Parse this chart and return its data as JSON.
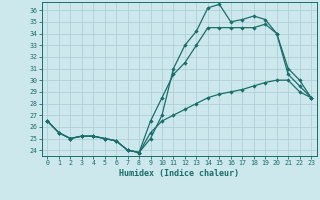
{
  "xlabel": "Humidex (Indice chaleur)",
  "bg_color": "#cce8ec",
  "grid_color": "#b0d0d8",
  "line_color": "#1a6e6a",
  "hours": [
    0,
    1,
    2,
    3,
    4,
    5,
    6,
    7,
    8,
    9,
    10,
    11,
    12,
    13,
    14,
    15,
    16,
    17,
    18,
    19,
    20,
    21,
    22,
    23
  ],
  "line1": [
    26.5,
    25.5,
    25.0,
    25.2,
    25.2,
    25.0,
    24.8,
    24.0,
    23.8,
    25.0,
    27.0,
    31.0,
    33.0,
    34.2,
    36.2,
    36.5,
    35.0,
    35.2,
    35.5,
    35.2,
    34.0,
    31.0,
    30.0,
    28.5
  ],
  "line2": [
    26.5,
    25.5,
    25.0,
    25.2,
    25.2,
    25.0,
    24.8,
    24.0,
    23.8,
    26.5,
    28.5,
    30.5,
    31.5,
    33.0,
    34.5,
    34.5,
    34.5,
    34.5,
    34.5,
    34.8,
    34.0,
    30.5,
    29.5,
    28.5
  ],
  "line3": [
    26.5,
    25.5,
    25.0,
    25.2,
    25.2,
    25.0,
    24.8,
    24.0,
    23.8,
    25.5,
    26.5,
    27.0,
    27.5,
    28.0,
    28.5,
    28.8,
    29.0,
    29.2,
    29.5,
    29.8,
    30.0,
    30.0,
    29.0,
    28.5
  ],
  "ylim_min": 23.5,
  "ylim_max": 36.7,
  "yticks": [
    24,
    25,
    26,
    27,
    28,
    29,
    30,
    31,
    32,
    33,
    34,
    35,
    36
  ],
  "xticks": [
    0,
    1,
    2,
    3,
    4,
    5,
    6,
    7,
    8,
    9,
    10,
    11,
    12,
    13,
    14,
    15,
    16,
    17,
    18,
    19,
    20,
    21,
    22,
    23
  ]
}
